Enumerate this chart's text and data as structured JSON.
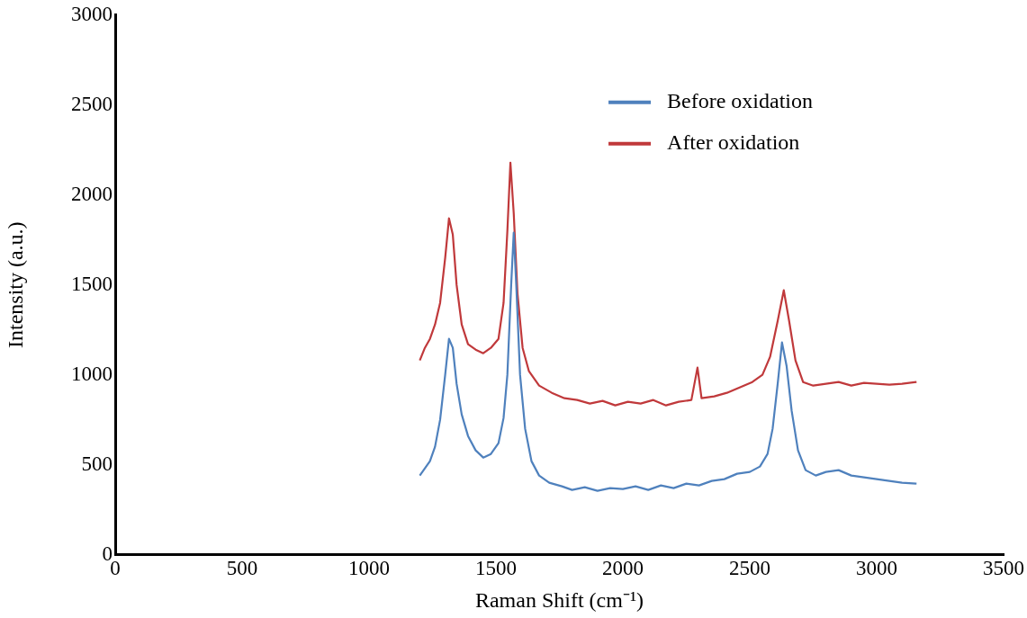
{
  "chart_data": {
    "type": "line",
    "xlabel": "Raman Shift (cm⁻¹)",
    "ylabel": "Intensity (a.u.)",
    "xlim": [
      0,
      3500
    ],
    "xticks": [
      0,
      500,
      1000,
      1500,
      2000,
      2500,
      3000,
      3500
    ],
    "ylim": [
      0,
      3000
    ],
    "yticks": [
      0,
      500,
      1000,
      1500,
      2000,
      2500,
      3000
    ],
    "grid": false,
    "legend": "top right",
    "marker": "none",
    "line_style": "solid",
    "series": [
      {
        "name": "Before oxidation",
        "color": "#4f81bd",
        "x": [
          1200,
          1220,
          1240,
          1260,
          1280,
          1300,
          1315,
          1330,
          1345,
          1365,
          1390,
          1420,
          1450,
          1480,
          1510,
          1530,
          1545,
          1560,
          1570,
          1580,
          1595,
          1615,
          1640,
          1670,
          1710,
          1760,
          1800,
          1850,
          1900,
          1950,
          2000,
          2050,
          2100,
          2150,
          2200,
          2250,
          2300,
          2350,
          2400,
          2450,
          2500,
          2540,
          2570,
          2590,
          2610,
          2627,
          2645,
          2665,
          2690,
          2720,
          2760,
          2800,
          2850,
          2900,
          2950,
          3000,
          3050,
          3100,
          3157
        ],
        "values": [
          440,
          480,
          520,
          600,
          750,
          1000,
          1200,
          1150,
          950,
          780,
          660,
          580,
          540,
          560,
          620,
          760,
          1000,
          1500,
          1790,
          1500,
          1000,
          700,
          520,
          440,
          400,
          380,
          360,
          375,
          355,
          370,
          365,
          380,
          360,
          385,
          370,
          395,
          385,
          410,
          420,
          450,
          460,
          490,
          560,
          700,
          950,
          1180,
          1050,
          800,
          580,
          470,
          440,
          460,
          470,
          440,
          430,
          420,
          410,
          400,
          395
        ]
      },
      {
        "name": "After oxidation",
        "color": "#c0393b",
        "x": [
          1200,
          1220,
          1240,
          1260,
          1280,
          1300,
          1315,
          1330,
          1345,
          1365,
          1390,
          1420,
          1450,
          1480,
          1510,
          1530,
          1545,
          1557,
          1570,
          1585,
          1605,
          1630,
          1670,
          1720,
          1770,
          1820,
          1870,
          1920,
          1970,
          2020,
          2070,
          2120,
          2170,
          2220,
          2270,
          2294,
          2310,
          2360,
          2410,
          2460,
          2510,
          2550,
          2580,
          2610,
          2634,
          2655,
          2680,
          2710,
          2750,
          2800,
          2850,
          2900,
          2950,
          3000,
          3050,
          3100,
          3157
        ],
        "values": [
          1080,
          1150,
          1200,
          1280,
          1400,
          1650,
          1870,
          1780,
          1500,
          1280,
          1170,
          1140,
          1120,
          1150,
          1200,
          1400,
          1800,
          2180,
          1900,
          1450,
          1150,
          1020,
          940,
          900,
          870,
          860,
          840,
          855,
          830,
          850,
          840,
          860,
          830,
          850,
          860,
          1040,
          870,
          880,
          900,
          930,
          960,
          1000,
          1100,
          1300,
          1470,
          1300,
          1080,
          960,
          940,
          950,
          960,
          940,
          955,
          950,
          945,
          950,
          960
        ]
      }
    ]
  }
}
